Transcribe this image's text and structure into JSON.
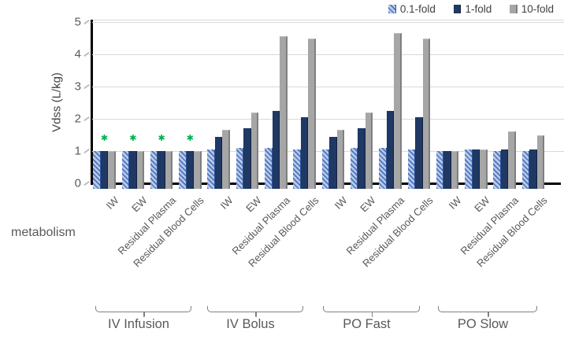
{
  "colors": {
    "series_hatch_fg": "#4a74c0",
    "series_hatch_bg": "#b9c9e8",
    "series_navy": "#1f3864",
    "series_gray": "#a6a6a6",
    "axis_line": "#000000",
    "gridline": "#d9d9d9",
    "label_gray": "#595959",
    "significance_green": "#00b050"
  },
  "labels": {
    "metabolism_note": "metabolism",
    "significance_marker": "✱"
  },
  "chart_data": {
    "type": "bar",
    "title": "",
    "xlabel": "metabolism",
    "ylabel": "Vdss (L/kg)",
    "ylim": [
      0,
      5
    ],
    "y_ticks": [
      0,
      1,
      2,
      3,
      4,
      5
    ],
    "grid": true,
    "legend_position": "top-right",
    "series_names": [
      "0.1-fold",
      "1-fold",
      "10-fold"
    ],
    "annotations": "Green asterisks above all four IV Infusion groups indicate significance",
    "sections": [
      {
        "label": "IV Infusion",
        "groups": [
          {
            "label": "IW",
            "values": [
              1.0,
              1.0,
              1.0
            ],
            "starred": true
          },
          {
            "label": "EW",
            "values": [
              1.0,
              1.0,
              1.0
            ],
            "starred": true
          },
          {
            "label": "Residual Plasma",
            "values": [
              1.0,
              1.0,
              1.0
            ],
            "starred": true
          },
          {
            "label": "Residual Blood Cells",
            "values": [
              1.0,
              1.0,
              1.0
            ],
            "starred": true
          }
        ]
      },
      {
        "label": "IV Bolus",
        "groups": [
          {
            "label": "IW",
            "values": [
              1.05,
              1.45,
              1.65
            ],
            "starred": false
          },
          {
            "label": "EW",
            "values": [
              1.1,
              1.7,
              2.2
            ],
            "starred": false
          },
          {
            "label": "Residual Plasma",
            "values": [
              1.1,
              2.25,
              4.55
            ],
            "starred": false
          },
          {
            "label": "Residual Blood Cells",
            "values": [
              1.05,
              2.05,
              4.5
            ],
            "starred": false
          }
        ]
      },
      {
        "label": "PO Fast",
        "groups": [
          {
            "label": "IW",
            "values": [
              1.05,
              1.45,
              1.65
            ],
            "starred": false
          },
          {
            "label": "EW",
            "values": [
              1.1,
              1.7,
              2.2
            ],
            "starred": false
          },
          {
            "label": "Residual Plasma",
            "values": [
              1.1,
              2.25,
              4.65
            ],
            "starred": false
          },
          {
            "label": "Residual Blood Cells",
            "values": [
              1.05,
              2.05,
              4.5
            ],
            "starred": false
          }
        ]
      },
      {
        "label": "PO Slow",
        "groups": [
          {
            "label": "IW",
            "values": [
              1.0,
              1.0,
              1.0
            ],
            "starred": false
          },
          {
            "label": "EW",
            "values": [
              1.05,
              1.05,
              1.05
            ],
            "starred": false
          },
          {
            "label": "Residual Plasma",
            "values": [
              1.0,
              1.05,
              1.6
            ],
            "starred": false
          },
          {
            "label": "Residual Blood Cells",
            "values": [
              1.0,
              1.05,
              1.5
            ],
            "starred": false
          }
        ]
      }
    ]
  },
  "legend": [
    {
      "label": "0.1-fold",
      "style": "hatch"
    },
    {
      "label": "1-fold",
      "style": "navy"
    },
    {
      "label": "10-fold",
      "style": "gray"
    }
  ]
}
